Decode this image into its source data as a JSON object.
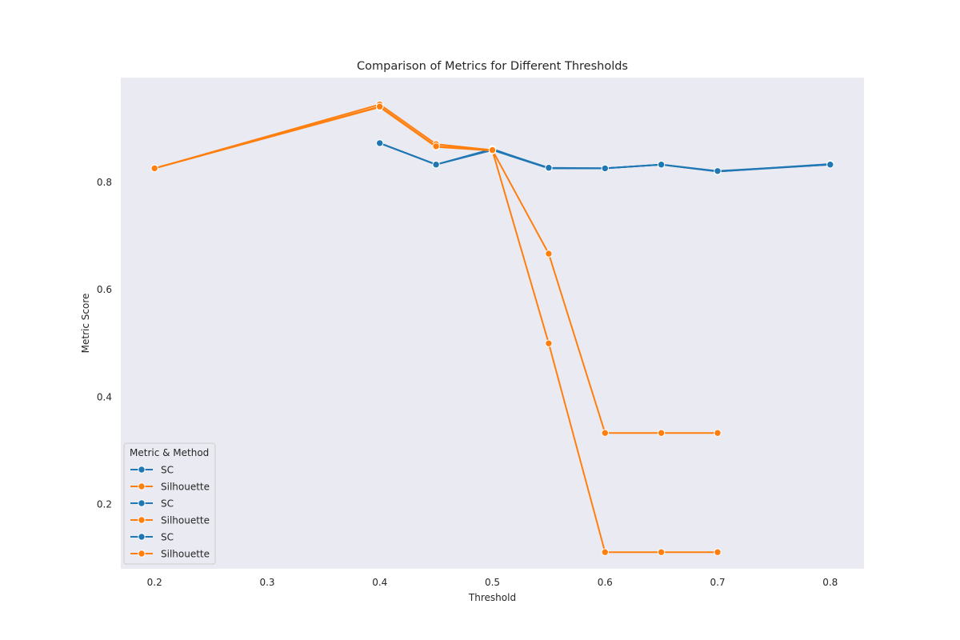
{
  "chart_data": {
    "type": "line",
    "title": "Comparison of Metrics for Different Thresholds",
    "xlabel": "Threshold",
    "ylabel": "Metric Score",
    "xlim": [
      0.17,
      0.83
    ],
    "ylim": [
      0.08,
      0.995
    ],
    "xticks": [
      "0.2",
      "0.3",
      "0.4",
      "0.5",
      "0.6",
      "0.7",
      "0.8"
    ],
    "yticks": [
      "0.2",
      "0.4",
      "0.6",
      "0.8"
    ],
    "grid": false,
    "legend": {
      "title": "Metric & Method",
      "placement": "lower-left",
      "entries": [
        {
          "label": "SC",
          "color": "#1f77b4"
        },
        {
          "label": "Silhouette",
          "color": "#ff7f0e"
        },
        {
          "label": "SC",
          "color": "#1f77b4"
        },
        {
          "label": "Silhouette",
          "color": "#ff7f0e"
        },
        {
          "label": "SC",
          "color": "#1f77b4"
        },
        {
          "label": "Silhouette",
          "color": "#ff7f0e"
        }
      ]
    },
    "colors": {
      "background": "#eaeaf2",
      "sc": "#1f77b4",
      "silhouette": "#ff7f0e"
    },
    "series": [
      {
        "metric": "SC",
        "color": "#1f77b4",
        "x": [
          0.4,
          0.45,
          0.5,
          0.55,
          0.6,
          0.65,
          0.7,
          0.8
        ],
        "y": [
          0.873,
          0.833,
          0.862,
          0.826,
          0.826,
          0.833,
          0.82,
          0.833
        ]
      },
      {
        "metric": "SC",
        "color": "#1f77b4",
        "x": [
          0.4,
          0.45,
          0.5,
          0.55,
          0.6,
          0.65,
          0.7,
          0.8
        ],
        "y": [
          0.873,
          0.833,
          0.86,
          0.826,
          0.826,
          0.833,
          0.82,
          0.834
        ]
      },
      {
        "metric": "SC",
        "color": "#1f77b4",
        "x": [
          0.4,
          0.45,
          0.5,
          0.55,
          0.6,
          0.65,
          0.7,
          0.8
        ],
        "y": [
          0.873,
          0.833,
          0.861,
          0.827,
          0.826,
          0.833,
          0.821,
          0.833
        ]
      },
      {
        "metric": "Silhouette",
        "color": "#ff7f0e",
        "x": [
          0.2,
          0.4,
          0.45,
          0.5,
          0.55,
          0.6,
          0.65,
          0.7
        ],
        "y": [
          0.826,
          0.945,
          0.871,
          0.86,
          0.667,
          0.333,
          0.333,
          0.333
        ]
      },
      {
        "metric": "Silhouette",
        "color": "#ff7f0e",
        "x": [
          0.2,
          0.4,
          0.45,
          0.5,
          0.55,
          0.6,
          0.65,
          0.7
        ],
        "y": [
          0.826,
          0.94,
          0.866,
          0.859,
          0.5,
          0.111,
          0.111,
          0.111
        ]
      },
      {
        "metric": "Silhouette",
        "color": "#ff7f0e",
        "x": [
          0.2,
          0.4,
          0.45,
          0.5
        ],
        "y": [
          0.826,
          0.941,
          0.867,
          0.86
        ]
      }
    ]
  }
}
